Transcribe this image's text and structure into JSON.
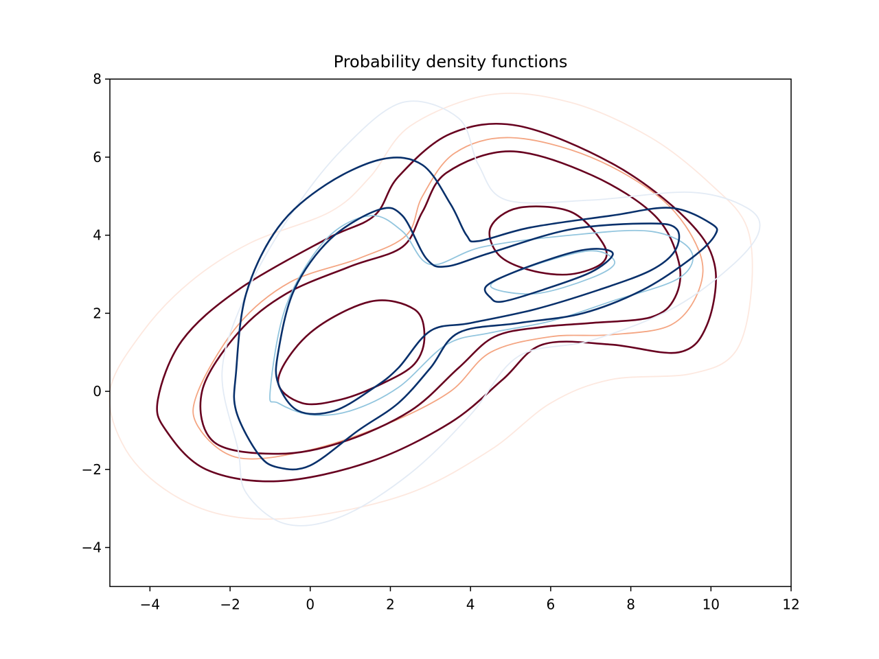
{
  "chart_data": {
    "type": "contour",
    "title": "Probability density functions",
    "xlabel": "",
    "ylabel": "",
    "xlim": [
      -5,
      12
    ],
    "ylim": [
      -5,
      8
    ],
    "grid": false,
    "legend": "none",
    "x_ticks": [
      -4,
      -2,
      0,
      2,
      4,
      6,
      8,
      10,
      12
    ],
    "y_ticks": [
      -4,
      -2,
      0,
      2,
      4,
      6,
      8
    ],
    "series": [
      {
        "colors": {
          "faint": "#fde8df",
          "mid": "#f4a582",
          "strong": "#67001f"
        },
        "levels": [
          {
            "level": "faint",
            "paths": [
              [
                [
                  -5,
                  0
                ],
                [
                  -4.2,
                  1.5
                ],
                [
                  -3,
                  2.8
                ],
                [
                  -1.5,
                  3.8
                ],
                [
                  0.5,
                  4.6
                ],
                [
                  1.5,
                  5.5
                ],
                [
                  2.5,
                  6.8
                ],
                [
                  4.5,
                  7.6
                ],
                [
                  6.5,
                  7.4
                ],
                [
                  8.5,
                  6.5
                ],
                [
                  10,
                  5.3
                ],
                [
                  10.9,
                  4.2
                ],
                [
                  11,
                  2.5
                ],
                [
                  10.6,
                  1
                ],
                [
                  9.5,
                  0.45
                ],
                [
                  7.5,
                  0.3
                ],
                [
                  6,
                  -0.3
                ],
                [
                  4.5,
                  -1.5
                ],
                [
                  2.5,
                  -2.6
                ],
                [
                  0,
                  -3.2
                ],
                [
                  -2,
                  -3.2
                ],
                [
                  -3.5,
                  -2.6
                ],
                [
                  -4.6,
                  -1.5
                ],
                [
                  -5,
                  0
                ]
              ]
            ]
          },
          {
            "level": "mid",
            "paths": [
              [
                [
                  -2.8,
                  0
                ],
                [
                  -1.8,
                  1.7
                ],
                [
                  -0.5,
                  2.8
                ],
                [
                  1.2,
                  3.4
                ],
                [
                  2.4,
                  4
                ],
                [
                  2.8,
                  5
                ],
                [
                  3.6,
                  6.1
                ],
                [
                  5,
                  6.5
                ],
                [
                  7,
                  6
                ],
                [
                  8.8,
                  4.9
                ],
                [
                  9.7,
                  3.6
                ],
                [
                  9.7,
                  2.6
                ],
                [
                  9,
                  1.7
                ],
                [
                  7.5,
                  1.45
                ],
                [
                  6,
                  1.4
                ],
                [
                  4.5,
                  1
                ],
                [
                  3.5,
                  0
                ],
                [
                  2,
                  -0.8
                ],
                [
                  0,
                  -1.5
                ],
                [
                  -1.8,
                  -1.7
                ],
                [
                  -2.8,
                  -0.9
                ],
                [
                  -2.8,
                  0
                ]
              ]
            ]
          },
          {
            "level": "strong",
            "paths": [
              [
                [
                  -3.8,
                  -0.2
                ],
                [
                  -3.2,
                  1.3
                ],
                [
                  -1.8,
                  2.6
                ],
                [
                  0.4,
                  3.9
                ],
                [
                  1.6,
                  4.5
                ],
                [
                  2.2,
                  5.5
                ],
                [
                  3.5,
                  6.6
                ],
                [
                  5.2,
                  6.8
                ],
                [
                  7.6,
                  5.8
                ],
                [
                  9.4,
                  4.4
                ],
                [
                  10.1,
                  3.2
                ],
                [
                  9.9,
                  1.7
                ],
                [
                  9.2,
                  1
                ],
                [
                  7.5,
                  1.2
                ],
                [
                  5.8,
                  1.2
                ],
                [
                  4.8,
                  0.3
                ],
                [
                  3.5,
                  -0.8
                ],
                [
                  1.5,
                  -1.8
                ],
                [
                  -0.8,
                  -2.3
                ],
                [
                  -2.6,
                  -2
                ],
                [
                  -3.6,
                  -1
                ],
                [
                  -3.8,
                  -0.2
                ]
              ],
              [
                [
                  -2.7,
                  0
                ],
                [
                  -1.8,
                  1.5
                ],
                [
                  -0.6,
                  2.5
                ],
                [
                  1,
                  3.2
                ],
                [
                  2.3,
                  3.7
                ],
                [
                  2.8,
                  4.6
                ],
                [
                  3.4,
                  5.6
                ],
                [
                  5,
                  6.15
                ],
                [
                  7,
                  5.55
                ],
                [
                  8.6,
                  4.5
                ],
                [
                  9.2,
                  3.3
                ],
                [
                  9.1,
                  2.4
                ],
                [
                  8.5,
                  1.9
                ],
                [
                  7,
                  1.75
                ],
                [
                  5.8,
                  1.65
                ],
                [
                  4.6,
                  1.4
                ],
                [
                  3.7,
                  0.6
                ],
                [
                  2.5,
                  -0.5
                ],
                [
                  0.8,
                  -1.3
                ],
                [
                  -0.8,
                  -1.6
                ],
                [
                  -2.4,
                  -1.3
                ],
                [
                  -2.7,
                  0
                ]
              ],
              [
                [
                  -0.8,
                  0.3
                ],
                [
                  0,
                  1.5
                ],
                [
                  1.5,
                  2.3
                ],
                [
                  2.6,
                  2.1
                ],
                [
                  2.85,
                  1.4
                ],
                [
                  2.6,
                  0.7
                ],
                [
                  1.8,
                  0.2
                ],
                [
                  0.8,
                  -0.2
                ],
                [
                  -0.2,
                  -0.3
                ],
                [
                  -0.8,
                  0.3
                ]
              ],
              [
                [
                  4.5,
                  4.2
                ],
                [
                  5.2,
                  4.7
                ],
                [
                  6.5,
                  4.6
                ],
                [
                  7.3,
                  3.8
                ],
                [
                  7.3,
                  3.3
                ],
                [
                  6.5,
                  3
                ],
                [
                  5.5,
                  3.1
                ],
                [
                  4.7,
                  3.5
                ],
                [
                  4.5,
                  4.2
                ]
              ]
            ]
          }
        ]
      },
      {
        "colors": {
          "faint": "#e3ebf5",
          "mid": "#92c5de",
          "strong": "#08306b"
        },
        "levels": [
          {
            "level": "faint",
            "paths": [
              [
                [
                  -1.8,
                  -1.5
                ],
                [
                  -2.2,
                  0.5
                ],
                [
                  -1.6,
                  2.5
                ],
                [
                  -0.5,
                  4.5
                ],
                [
                  0.8,
                  6.2
                ],
                [
                  2.3,
                  7.4
                ],
                [
                  3.7,
                  7
                ],
                [
                  4.2,
                  5.8
                ],
                [
                  4.9,
                  4.9
                ],
                [
                  7,
                  4.9
                ],
                [
                  9.5,
                  5.1
                ],
                [
                  10.9,
                  4.7
                ],
                [
                  11.2,
                  4.1
                ],
                [
                  10.5,
                  3.2
                ],
                [
                  9,
                  2.1
                ],
                [
                  7,
                  1.3
                ],
                [
                  5.2,
                  0.9
                ],
                [
                  4,
                  -0.6
                ],
                [
                  2.5,
                  -2.1
                ],
                [
                  0.8,
                  -3.2
                ],
                [
                  -0.6,
                  -3.4
                ],
                [
                  -1.6,
                  -2.6
                ],
                [
                  -1.8,
                  -1.5
                ]
              ]
            ]
          },
          {
            "level": "mid",
            "paths": [
              [
                [
                  -1,
                  0
                ],
                [
                  -0.6,
                  2.2
                ],
                [
                  0.4,
                  3.9
                ],
                [
                  1.5,
                  4.5
                ],
                [
                  2.3,
                  4.1
                ],
                [
                  3,
                  3.25
                ],
                [
                  4.3,
                  3.7
                ],
                [
                  6.5,
                  4
                ],
                [
                  8.5,
                  4.1
                ],
                [
                  9.5,
                  3.6
                ],
                [
                  9.2,
                  2.9
                ],
                [
                  7.5,
                  2.3
                ],
                [
                  6,
                  1.8
                ],
                [
                  4.5,
                  1.5
                ],
                [
                  3.4,
                  1.2
                ],
                [
                  2.2,
                  0.1
                ],
                [
                  1,
                  -0.5
                ],
                [
                  0,
                  -0.6
                ],
                [
                  -0.8,
                  -0.3
                ],
                [
                  -1,
                  0
                ]
              ],
              [
                [
                  4.5,
                  2.7
                ],
                [
                  5.5,
                  3.2
                ],
                [
                  7,
                  3.6
                ],
                [
                  7.6,
                  3.3
                ],
                [
                  7,
                  2.9
                ],
                [
                  5.6,
                  2.5
                ],
                [
                  4.5,
                  2.7
                ]
              ]
            ]
          },
          {
            "level": "strong",
            "paths": [
              [
                [
                  -1.85,
                  0.5
                ],
                [
                  -1.6,
                  2.5
                ],
                [
                  -0.8,
                  4.2
                ],
                [
                  0.4,
                  5.3
                ],
                [
                  1.8,
                  5.95
                ],
                [
                  2.8,
                  5.8
                ],
                [
                  3.5,
                  4.8
                ],
                [
                  3.9,
                  4
                ],
                [
                  4.2,
                  3.85
                ],
                [
                  5.5,
                  4.2
                ],
                [
                  7.5,
                  4.5
                ],
                [
                  9,
                  4.7
                ],
                [
                  10,
                  4.3
                ],
                [
                  10.1,
                  4
                ],
                [
                  9.5,
                  3.4
                ],
                [
                  8.3,
                  2.6
                ],
                [
                  6.8,
                  2
                ],
                [
                  5.2,
                  1.75
                ],
                [
                  3.7,
                  1.5
                ],
                [
                  3,
                  0.6
                ],
                [
                  2.2,
                  -0.3
                ],
                [
                  1.2,
                  -1
                ],
                [
                  0,
                  -1.9
                ],
                [
                  -0.8,
                  -1.95
                ],
                [
                  -1.3,
                  -1.6
                ],
                [
                  -1.85,
                  -0.5
                ],
                [
                  -1.85,
                  0.5
                ]
              ],
              [
                [
                  -0.8,
                  1
                ],
                [
                  -0.4,
                  2.6
                ],
                [
                  0.5,
                  3.9
                ],
                [
                  1.7,
                  4.65
                ],
                [
                  2.3,
                  4.5
                ],
                [
                  2.9,
                  3.4
                ],
                [
                  3.4,
                  3.2
                ],
                [
                  4.5,
                  3.55
                ],
                [
                  6.5,
                  4.15
                ],
                [
                  8.5,
                  4.3
                ],
                [
                  9.15,
                  4.15
                ],
                [
                  9.1,
                  3.6
                ],
                [
                  8.5,
                  3.1
                ],
                [
                  7.2,
                  2.6
                ],
                [
                  5.6,
                  2.1
                ],
                [
                  4,
                  1.75
                ],
                [
                  3,
                  1.55
                ],
                [
                  2.2,
                  0.6
                ],
                [
                  1.6,
                  0.1
                ],
                [
                  0.6,
                  -0.5
                ],
                [
                  -0.3,
                  -0.5
                ],
                [
                  -0.8,
                  0.2
                ],
                [
                  -0.8,
                  1
                ]
              ],
              [
                [
                  4.4,
                  2.7
                ],
                [
                  5.2,
                  3.1
                ],
                [
                  6.5,
                  3.55
                ],
                [
                  7.2,
                  3.65
                ],
                [
                  7.55,
                  3.5
                ],
                [
                  7,
                  3.05
                ],
                [
                  5.8,
                  2.6
                ],
                [
                  4.8,
                  2.3
                ],
                [
                  4.5,
                  2.4
                ],
                [
                  4.4,
                  2.7
                ]
              ]
            ]
          }
        ]
      }
    ]
  }
}
